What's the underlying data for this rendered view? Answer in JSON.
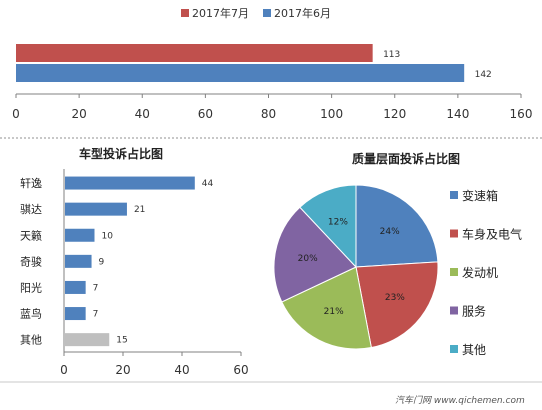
{
  "chart_data": [
    {
      "type": "bar",
      "orientation": "horizontal",
      "series": [
        {
          "name": "2017年7月",
          "values": [
            113
          ],
          "color": "#c0504d"
        },
        {
          "name": "2017年6月",
          "values": [
            142
          ],
          "color": "#4f81bd"
        }
      ],
      "xlim": [
        0,
        160
      ],
      "xticks": [
        "0",
        "20",
        "40",
        "60",
        "80",
        "100",
        "120",
        "140",
        "160"
      ],
      "legend": "top",
      "grid": false
    },
    {
      "type": "bar",
      "orientation": "horizontal",
      "title": "车型投诉占比图",
      "categories": [
        "轩逸",
        "骐达",
        "天籁",
        "奇骏",
        "阳光",
        "蓝鸟",
        "其他"
      ],
      "values": [
        44,
        21,
        10,
        9,
        7,
        7,
        15
      ],
      "colors": [
        "#4f81bd",
        "#4f81bd",
        "#4f81bd",
        "#4f81bd",
        "#4f81bd",
        "#4f81bd",
        "#bfbfbf"
      ],
      "xlim": [
        0,
        60
      ],
      "xticks": [
        "0",
        "20",
        "40",
        "60"
      ],
      "grid": false
    },
    {
      "type": "pie",
      "title": "质量层面投诉占比图",
      "labels": [
        "变速箱",
        "车身及电气",
        "发动机",
        "服务",
        "其他"
      ],
      "values": [
        24,
        23,
        21,
        20,
        12
      ],
      "value_labels": [
        "24%",
        "23%",
        "21%",
        "20%",
        "12%"
      ],
      "colors": [
        "#4f81bd",
        "#c0504d",
        "#9bbb59",
        "#8064a2",
        "#4bacc6"
      ],
      "legend": "right"
    }
  ],
  "watermark": {
    "text": "汽车门网 www.qichemen.com"
  }
}
